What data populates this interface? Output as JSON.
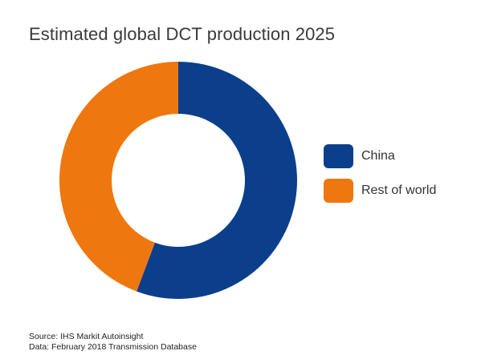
{
  "chart_data": {
    "type": "pie",
    "variant": "donut",
    "title": "Estimated global DCT production 2025",
    "slices": [
      {
        "label": "China",
        "value": 55.7,
        "color": "#0b3f8c"
      },
      {
        "label": "Rest of world",
        "value": 44.3,
        "color": "#ee770f"
      }
    ],
    "legend_position": "right"
  },
  "source": {
    "line1": "Source: IHS Markit Autoinsight",
    "line2": "Data: February 2018 Transmission Database"
  }
}
